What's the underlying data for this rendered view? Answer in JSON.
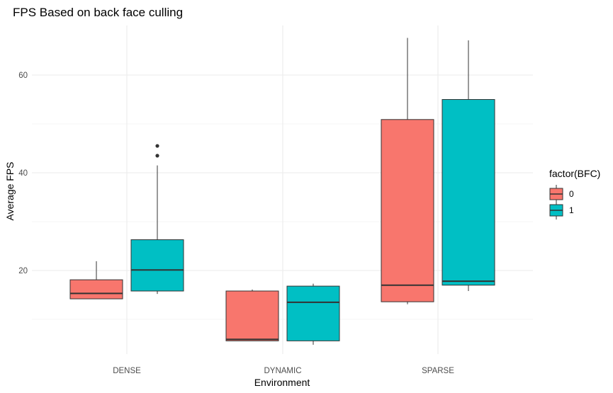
{
  "chart_data": {
    "type": "boxplot",
    "title": "FPS Based on back face culling",
    "xlabel": "Environment",
    "ylabel": "Average FPS",
    "categories": [
      "DENSE",
      "DYNAMIC",
      "SPARSE"
    ],
    "ylim": [
      0,
      70
    ],
    "y_ticks": [
      20,
      40,
      60
    ],
    "y_tick_labels": [
      "20",
      "40",
      "60"
    ],
    "grid": true,
    "legend": {
      "title": "factor(BFC)",
      "position": "right",
      "entries": [
        {
          "label": "0",
          "color": "#F8766D"
        },
        {
          "label": "1",
          "color": "#00BFC4"
        }
      ]
    },
    "series": [
      {
        "name": "0",
        "color": "#F8766D",
        "boxes": [
          {
            "category": "DENSE",
            "whisker_low": 14.2,
            "q1": 14.2,
            "median": 15.3,
            "q3": 18.1,
            "whisker_high": 21.9,
            "outliers": []
          },
          {
            "category": "DYNAMIC",
            "whisker_low": 5.6,
            "q1": 5.6,
            "median": 5.9,
            "q3": 15.8,
            "whisker_high": 16.1,
            "outliers": []
          },
          {
            "category": "SPARSE",
            "whisker_low": 13.1,
            "q1": 13.6,
            "median": 17.0,
            "q3": 50.9,
            "whisker_high": 67.6,
            "outliers": []
          }
        ]
      },
      {
        "name": "1",
        "color": "#00BFC4",
        "boxes": [
          {
            "category": "DENSE",
            "whisker_low": 15.2,
            "q1": 15.8,
            "median": 20.1,
            "q3": 26.3,
            "whisker_high": 41.5,
            "outliers": [
              43.5,
              45.5
            ]
          },
          {
            "category": "DYNAMIC",
            "whisker_low": 4.8,
            "q1": 5.6,
            "median": 13.5,
            "q3": 16.8,
            "whisker_high": 17.3,
            "outliers": []
          },
          {
            "category": "SPARSE",
            "whisker_low": 15.8,
            "q1": 17.0,
            "median": 17.8,
            "q3": 55.0,
            "whisker_high": 67.1,
            "outliers": []
          }
        ]
      }
    ]
  }
}
